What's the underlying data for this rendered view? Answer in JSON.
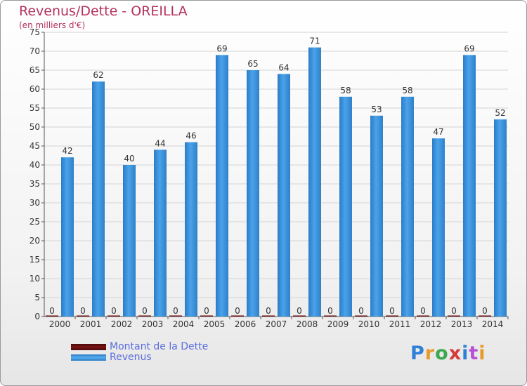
{
  "title": "Revenus/Dette - OREILLA",
  "subtitle": "(en milliers d'€)",
  "logo": {
    "text": "Proxiti",
    "colors": [
      "#2e7fd6",
      "#e89a2c",
      "#3ea84f",
      "#d63b3b",
      "#2e7fd6",
      "#b84fd6",
      "#e89a2c"
    ]
  },
  "colors": {
    "debt": "#6b0f0f",
    "revenue": "#3e93dc",
    "axis_text": "#333333",
    "title": "#b4315c"
  },
  "chart_data": {
    "type": "bar",
    "categories": [
      "2000",
      "2001",
      "2002",
      "2003",
      "2004",
      "2005",
      "2006",
      "2007",
      "2008",
      "2009",
      "2010",
      "2011",
      "2012",
      "2013",
      "2014"
    ],
    "series": [
      {
        "name": "Montant de la Dette",
        "values": [
          0,
          0,
          0,
          0,
          0,
          0,
          0,
          0,
          0,
          0,
          0,
          0,
          0,
          0,
          0
        ]
      },
      {
        "name": "Revenus",
        "values": [
          42,
          62,
          40,
          44,
          46,
          69,
          65,
          64,
          71,
          58,
          53,
          58,
          47,
          69,
          52
        ]
      }
    ],
    "ylim": [
      0,
      75
    ],
    "yticks": [
      0,
      5,
      10,
      15,
      20,
      25,
      30,
      35,
      40,
      45,
      50,
      55,
      60,
      65,
      70,
      75
    ],
    "grid": true,
    "legend_position": "bottom-left"
  }
}
